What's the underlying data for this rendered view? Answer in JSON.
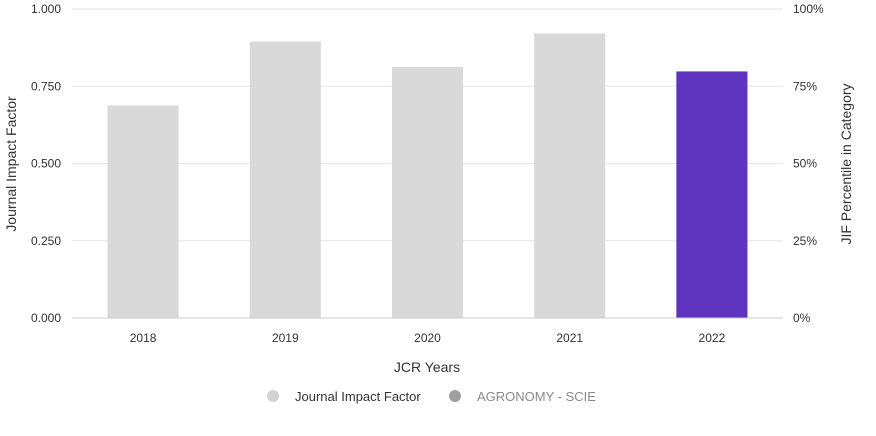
{
  "chart_data": {
    "type": "bar",
    "categories": [
      "2018",
      "2019",
      "2020",
      "2021",
      "2022"
    ],
    "series": [
      {
        "name": "Journal Impact Factor",
        "values": [
          0.688,
          0.895,
          0.812,
          0.921,
          0.798
        ]
      }
    ],
    "highlight_index": 4,
    "colors": {
      "bar": "#d9d9d9",
      "highlight": "#5f34bf",
      "grid": "#e6e6e6",
      "legend_active": "#d3d3d3",
      "legend_inactive": "#9e9e9e"
    },
    "xlabel": "JCR Years",
    "ylabel": "Journal Impact Factor",
    "ylabel_right": "JIF Percentile in Category",
    "ylim": [
      0,
      1
    ],
    "y_ticks": [
      "0.000",
      "0.250",
      "0.500",
      "0.750",
      "1.000"
    ],
    "y_ticks_right": [
      "0%",
      "25%",
      "50%",
      "75%",
      "100%"
    ],
    "grid": true,
    "legend": {
      "placement": "bottom-center",
      "items": [
        {
          "label": "Journal Impact Factor",
          "active": true
        },
        {
          "label": "AGRONOMY - SCIE",
          "active": false
        }
      ]
    }
  }
}
